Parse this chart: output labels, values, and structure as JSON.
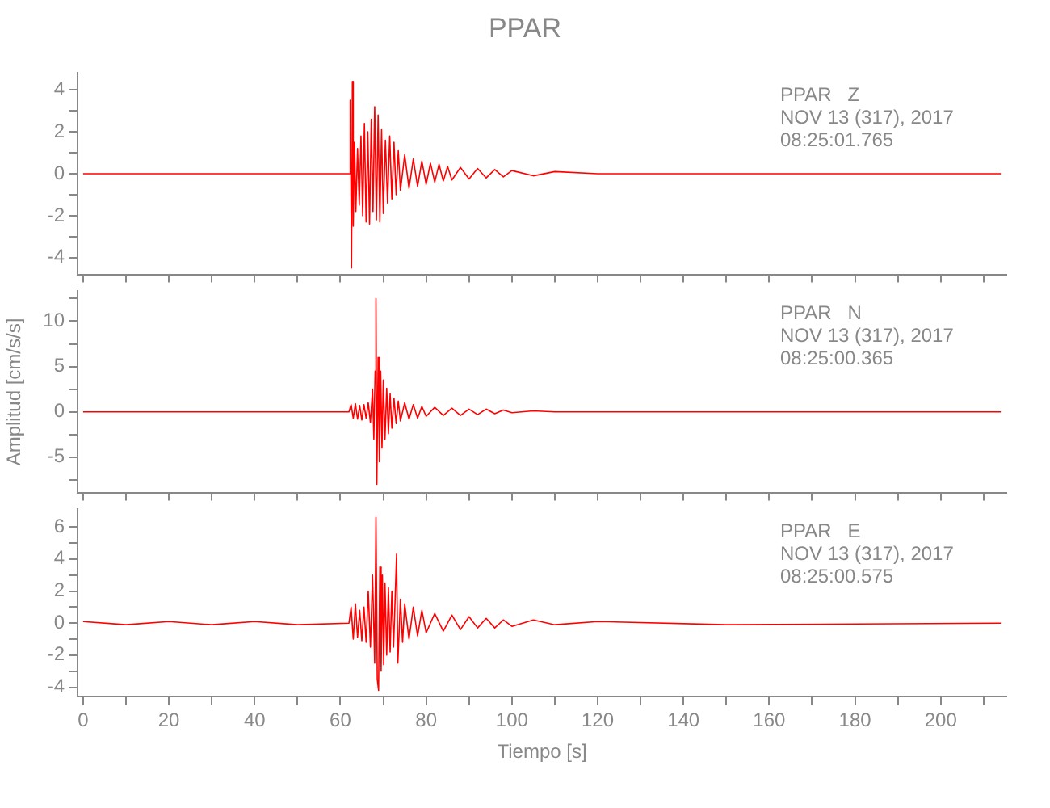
{
  "chart_data": [
    {
      "type": "line",
      "title": "PPAR",
      "annotations": [
        "PPAR   Z",
        "NOV 13 (317), 2017",
        "08:25:01.765"
      ],
      "tick_labels": "y",
      "xlim": [
        -1.3,
        215.3
      ],
      "xticks": [
        0,
        {
          "value": 10,
          "label": null
        },
        20,
        {
          "value": 30,
          "label": null
        },
        40,
        {
          "value": 50,
          "label": null
        },
        60,
        {
          "value": 70,
          "label": null
        },
        80,
        {
          "value": 90,
          "label": null
        },
        100,
        {
          "value": 110,
          "label": null
        },
        120,
        {
          "value": 130,
          "label": null
        },
        140,
        {
          "value": 150,
          "label": null
        },
        160,
        {
          "value": 170,
          "label": null
        },
        180,
        {
          "value": 190,
          "label": null
        },
        200,
        {
          "value": 210,
          "label": null
        }
      ],
      "ylim": [
        -4.8,
        4.8
      ],
      "yticks": [
        -4,
        {
          "value": -3,
          "label": null
        },
        -2,
        {
          "value": -1,
          "label": null
        },
        0,
        {
          "value": 1,
          "label": null
        },
        2,
        {
          "value": 3,
          "label": null
        },
        4
      ],
      "series": [
        {
          "color": "#ff0000",
          "x": [
            0,
            20,
            40,
            62,
            62.3,
            62.6,
            62.8,
            63.0,
            63.3,
            63.6,
            64,
            64.4,
            64.8,
            65.2,
            65.6,
            66,
            66.4,
            66.8,
            67.2,
            67.6,
            68,
            68.4,
            68.8,
            69.2,
            69.6,
            70,
            70.5,
            71,
            71.5,
            72,
            72.5,
            73,
            73.5,
            74,
            75,
            76,
            77,
            78,
            79,
            80,
            81,
            82,
            83,
            84,
            85,
            86,
            88,
            90,
            92,
            94,
            96,
            98,
            100,
            105,
            110,
            120,
            150,
            214
          ],
          "values": [
            0,
            0,
            0,
            0,
            3.5,
            -4.5,
            4.4,
            -2.5,
            1.5,
            -1.8,
            1.2,
            -1.5,
            1.8,
            -2.0,
            2.4,
            -2.3,
            2.0,
            -2.4,
            2.6,
            -1.8,
            3.2,
            -2.2,
            2.8,
            -2.3,
            2.1,
            -1.9,
            1.6,
            -1.4,
            1.8,
            -1.2,
            1.5,
            -1.0,
            1.1,
            -0.8,
            0.9,
            -0.7,
            0.7,
            -0.6,
            0.6,
            -0.5,
            0.5,
            -0.4,
            0.45,
            -0.35,
            0.35,
            -0.3,
            0.3,
            -0.25,
            0.25,
            -0.2,
            0.2,
            -0.15,
            0.15,
            -0.1,
            0.1,
            0,
            0,
            0
          ]
        }
      ]
    },
    {
      "type": "line",
      "ylabel": "Amplitud [cm/s/s]",
      "annotations": [
        "PPAR   N",
        "NOV 13 (317), 2017",
        "08:25:00.365"
      ],
      "tick_labels": "y",
      "xlim": [
        -1.3,
        215.3
      ],
      "xticks": [
        0,
        {
          "value": 10,
          "label": null
        },
        20,
        {
          "value": 30,
          "label": null
        },
        40,
        {
          "value": 50,
          "label": null
        },
        60,
        {
          "value": 70,
          "label": null
        },
        80,
        {
          "value": 90,
          "label": null
        },
        100,
        {
          "value": 110,
          "label": null
        },
        120,
        {
          "value": 130,
          "label": null
        },
        140,
        {
          "value": 150,
          "label": null
        },
        160,
        {
          "value": 170,
          "label": null
        },
        180,
        {
          "value": 190,
          "label": null
        },
        200,
        {
          "value": 210,
          "label": null
        }
      ],
      "ylim": [
        -8.9,
        13.3
      ],
      "yticks": [
        {
          "value": -7.5,
          "label": null
        },
        -5,
        {
          "value": -2.5,
          "label": null
        },
        0,
        {
          "value": 2.5,
          "label": null
        },
        5,
        {
          "value": 7.5,
          "label": null
        },
        10,
        {
          "value": 12.5,
          "label": null
        }
      ],
      "series": [
        {
          "color": "#ff0000",
          "x": [
            0,
            20,
            40,
            62,
            62.5,
            63,
            63.5,
            64,
            64.5,
            65,
            65.5,
            66,
            66.5,
            67,
            67.5,
            67.8,
            68.1,
            68.3,
            68.5,
            68.8,
            69.1,
            69.4,
            69.7,
            70,
            70.4,
            70.8,
            71.2,
            71.6,
            72,
            72.5,
            73,
            73.5,
            74,
            75,
            76,
            77,
            78,
            79,
            80,
            82,
            84,
            86,
            88,
            90,
            92,
            94,
            96,
            98,
            100,
            105,
            110,
            120,
            150,
            214
          ],
          "values": [
            0,
            0,
            0,
            0,
            0.8,
            -0.7,
            0.9,
            -0.8,
            0.7,
            -0.9,
            0.8,
            -0.7,
            1.0,
            -1.2,
            2.5,
            -3.0,
            4.5,
            12.5,
            -8.0,
            6.0,
            -5.5,
            4.5,
            -4.0,
            3.5,
            -3.0,
            2.6,
            -2.4,
            2.0,
            -1.8,
            1.5,
            -1.3,
            1.2,
            -1.0,
            1.0,
            -0.8,
            0.8,
            -0.7,
            0.6,
            -0.5,
            0.5,
            -0.4,
            0.4,
            -0.4,
            0.3,
            -0.3,
            0.3,
            -0.2,
            0.2,
            -0.1,
            0.1,
            0,
            0,
            0,
            0
          ]
        }
      ]
    },
    {
      "type": "line",
      "xlabel": "Tiempo [s]",
      "annotations": [
        "PPAR   E",
        "NOV 13 (317), 2017",
        "08:25:00.575"
      ],
      "xlim": [
        -1.3,
        215.3
      ],
      "xticks": [
        0,
        {
          "value": 10,
          "label": null
        },
        20,
        {
          "value": 30,
          "label": null
        },
        40,
        {
          "value": 50,
          "label": null
        },
        60,
        {
          "value": 70,
          "label": null
        },
        80,
        {
          "value": 90,
          "label": null
        },
        100,
        {
          "value": 110,
          "label": null
        },
        120,
        {
          "value": 130,
          "label": null
        },
        140,
        {
          "value": 150,
          "label": null
        },
        160,
        {
          "value": 170,
          "label": null
        },
        180,
        {
          "value": 190,
          "label": null
        },
        200,
        {
          "value": 210,
          "label": null
        }
      ],
      "ylim": [
        -4.6,
        7.1
      ],
      "yticks": [
        -4,
        {
          "value": -3,
          "label": null
        },
        -2,
        {
          "value": -1,
          "label": null
        },
        0,
        {
          "value": 1,
          "label": null
        },
        2,
        {
          "value": 3,
          "label": null
        },
        4,
        {
          "value": 5,
          "label": null
        },
        6
      ],
      "series": [
        {
          "color": "#ff0000",
          "x": [
            0,
            10,
            20,
            30,
            40,
            50,
            62,
            62.5,
            63,
            63.5,
            64,
            64.5,
            65,
            65.5,
            66,
            66.5,
            67,
            67.5,
            68,
            68.3,
            68.6,
            68.9,
            69.2,
            69.5,
            69.8,
            70.1,
            70.4,
            70.8,
            71.2,
            71.6,
            72,
            72.4,
            72.8,
            73.1,
            73.4,
            74,
            74.5,
            75,
            76,
            77,
            78,
            79,
            80,
            82,
            84,
            86,
            88,
            90,
            92,
            94,
            96,
            98,
            100,
            105,
            110,
            120,
            150,
            214
          ],
          "values": [
            0.1,
            -0.1,
            0.1,
            -0.1,
            0.1,
            -0.1,
            0,
            1.0,
            -1.0,
            1.2,
            -0.9,
            0.8,
            -1.1,
            1.0,
            -1.2,
            2.0,
            -1.5,
            3.0,
            -2.5,
            6.6,
            -3.5,
            -4.2,
            3.5,
            -3.0,
            3.0,
            -2.6,
            2.5,
            -2.0,
            2.2,
            -1.8,
            2.0,
            -1.5,
            1.8,
            4.3,
            -2.5,
            1.5,
            -1.2,
            1.2,
            -1.0,
            1.0,
            -0.8,
            0.8,
            -0.6,
            0.6,
            -0.5,
            0.5,
            -0.4,
            0.4,
            -0.3,
            0.3,
            -0.3,
            0.2,
            -0.2,
            0.2,
            -0.1,
            0.1,
            -0.1,
            0
          ]
        }
      ]
    }
  ]
}
